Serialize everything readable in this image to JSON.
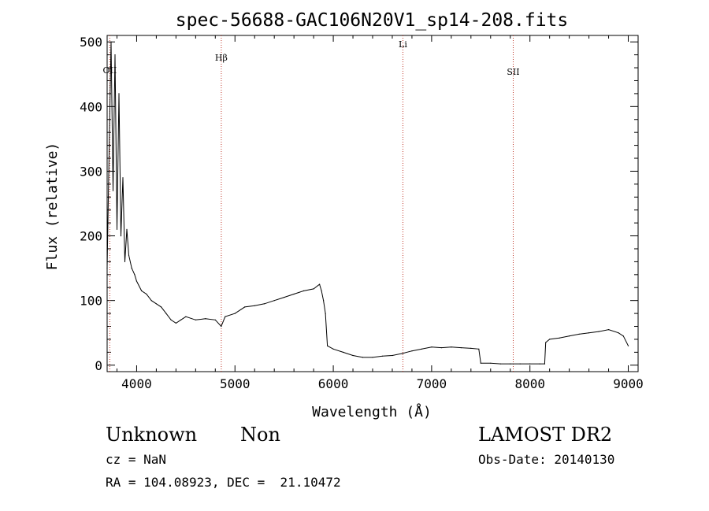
{
  "chart_data": {
    "type": "line",
    "title": "spec-56688-GAC106N20V1_sp14-208.fits",
    "xlabel": "Wavelength (Å)",
    "ylabel": "Flux (relative)",
    "xlim": [
      3700,
      9100
    ],
    "ylim": [
      -10,
      510
    ],
    "xticks": [
      4000,
      5000,
      6000,
      7000,
      8000,
      9000
    ],
    "yticks": [
      0,
      100,
      200,
      300,
      400,
      500
    ],
    "grid": false,
    "series": [
      {
        "x": [
          3700,
          3720,
          3740,
          3760,
          3780,
          3800,
          3820,
          3840,
          3860,
          3880,
          3900,
          3920,
          3950,
          3980,
          4000,
          4050,
          4100,
          4150,
          4200,
          4250,
          4300,
          4350,
          4400,
          4450,
          4500,
          4600,
          4700,
          4800,
          4860,
          4900,
          5000,
          5100,
          5200,
          5300,
          5400,
          5500,
          5600,
          5700,
          5800,
          5860,
          5880,
          5900,
          5920,
          5940,
          6000,
          6100,
          6200,
          6300,
          6400,
          6500,
          6600,
          6700,
          6800,
          6900,
          7000,
          7100,
          7200,
          7300,
          7400,
          7480,
          7500,
          7600,
          7700,
          7800,
          7900,
          8000,
          8100,
          8150,
          8160,
          8200,
          8300,
          8400,
          8500,
          8600,
          8700,
          8800,
          8900,
          8950,
          9000
        ],
        "y": [
          150,
          330,
          500,
          270,
          480,
          210,
          420,
          200,
          290,
          160,
          210,
          170,
          150,
          140,
          130,
          115,
          110,
          100,
          95,
          90,
          80,
          70,
          65,
          70,
          75,
          70,
          72,
          70,
          60,
          75,
          80,
          90,
          92,
          95,
          100,
          105,
          110,
          115,
          118,
          125,
          115,
          100,
          80,
          30,
          25,
          20,
          15,
          12,
          12,
          14,
          15,
          18,
          22,
          25,
          28,
          27,
          28,
          27,
          26,
          25,
          3,
          3,
          2,
          2,
          2,
          2,
          2,
          2,
          35,
          40,
          42,
          45,
          48,
          50,
          52,
          55,
          50,
          45,
          30
        ]
      }
    ],
    "annotations": [
      {
        "label": "OII",
        "x": 3727
      },
      {
        "label": "Hβ",
        "x": 4861
      },
      {
        "label": "Li",
        "x": 6708
      },
      {
        "label": "SII",
        "x": 7830
      }
    ]
  },
  "info": {
    "object_class": "Unknown",
    "subclass": "Non",
    "survey": "LAMOST DR2",
    "cz": "cz = NaN",
    "obs_date": "Obs-Date: 20140130",
    "coords": "RA = 104.08923, DEC =  21.10472"
  },
  "colors": {
    "line": "#000000",
    "axis": "#000000",
    "marker": "#c0392b"
  }
}
